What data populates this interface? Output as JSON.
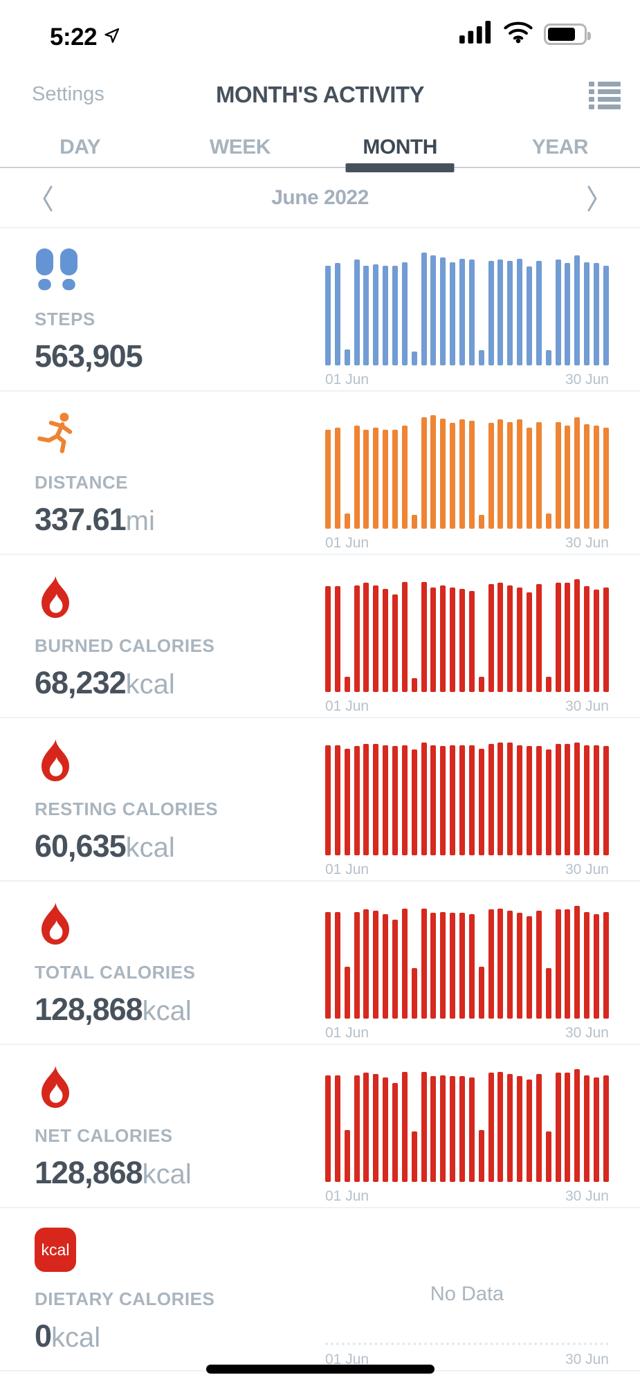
{
  "status_bar": {
    "time": "5:22"
  },
  "header": {
    "settings": "Settings",
    "title": "MONTH'S ACTIVITY"
  },
  "tabs": [
    {
      "label": "DAY"
    },
    {
      "label": "WEEK"
    },
    {
      "label": "MONTH"
    },
    {
      "label": "YEAR"
    }
  ],
  "active_tab": "MONTH",
  "date_nav": {
    "period": "June 2022"
  },
  "sections": [
    {
      "label": "STEPS",
      "value": "563,905",
      "unit": ""
    },
    {
      "label": "DISTANCE",
      "value": "337.61",
      "unit": "mi"
    },
    {
      "label": "BURNED CALORIES",
      "value": "68,232",
      "unit": "kcal"
    },
    {
      "label": "RESTING CALORIES",
      "value": "60,635",
      "unit": "kcal"
    },
    {
      "label": "TOTAL CALORIES",
      "value": "128,868",
      "unit": "kcal"
    },
    {
      "label": "NET CALORIES",
      "value": "128,868",
      "unit": "kcal"
    },
    {
      "label": "DIETARY CALORIES",
      "value": "0",
      "unit": "kcal",
      "badge_text": "kcal",
      "no_data": "No Data"
    }
  ],
  "chart_data": [
    {
      "type": "bar",
      "metric": "Steps",
      "color": "#719cd4",
      "x_labels": [
        "01 Jun",
        "30 Jun"
      ],
      "days": 30,
      "ylabel": "",
      "y_axis": "unlabeled, bar heights read as % of chart height",
      "monthly_total": "563,905 steps",
      "values_pct": [
        87,
        89,
        14,
        92,
        87,
        88,
        87,
        87,
        90,
        12,
        98,
        96,
        94,
        90,
        93,
        92,
        13,
        91,
        92,
        91,
        93,
        86,
        91,
        13,
        92,
        89,
        96,
        90,
        89,
        87
      ]
    },
    {
      "type": "bar",
      "metric": "Distance",
      "color": "#ee8434",
      "x_labels": [
        "01 Jun",
        "30 Jun"
      ],
      "days": 30,
      "ylabel": "",
      "y_axis": "unlabeled, bar heights read as % of chart height",
      "monthly_total": "337.61 mi",
      "values_pct": [
        86,
        88,
        13,
        90,
        86,
        88,
        86,
        86,
        90,
        12,
        97,
        99,
        96,
        92,
        95,
        94,
        12,
        92,
        95,
        93,
        95,
        88,
        93,
        13,
        93,
        90,
        97,
        91,
        90,
        88
      ]
    },
    {
      "type": "bar",
      "metric": "Burned Calories",
      "color": "#d6291f",
      "x_labels": [
        "01 Jun",
        "30 Jun"
      ],
      "days": 30,
      "ylabel": "",
      "y_axis": "unlabeled, bar heights read as % of chart height",
      "monthly_total": "68,232 kcal",
      "values_pct": [
        92,
        92,
        13,
        93,
        95,
        93,
        90,
        85,
        96,
        12,
        96,
        91,
        93,
        91,
        90,
        88,
        13,
        94,
        95,
        93,
        91,
        87,
        94,
        13,
        95,
        95,
        98,
        92,
        89,
        91
      ]
    },
    {
      "type": "bar",
      "metric": "Resting Calories",
      "color": "#d6291f",
      "x_labels": [
        "01 Jun",
        "30 Jun"
      ],
      "days": 30,
      "ylabel": "",
      "y_axis": "unlabeled, bar heights read as % of chart height",
      "monthly_total": "60,635 kcal",
      "values_pct": [
        96,
        96,
        93,
        95,
        97,
        97,
        96,
        95,
        96,
        92,
        98,
        96,
        95,
        96,
        96,
        96,
        93,
        97,
        98,
        98,
        96,
        95,
        95,
        92,
        97,
        97,
        98,
        96,
        96,
        95
      ]
    },
    {
      "type": "bar",
      "metric": "Total Calories",
      "color": "#d6291f",
      "x_labels": [
        "01 Jun",
        "30 Jun"
      ],
      "days": 30,
      "ylabel": "",
      "y_axis": "unlabeled, bar heights read as % of chart height",
      "monthly_total": "128,868 kcal",
      "values_pct": [
        93,
        93,
        45,
        93,
        95,
        94,
        91,
        86,
        96,
        44,
        96,
        92,
        93,
        92,
        92,
        91,
        45,
        95,
        96,
        94,
        92,
        89,
        94,
        44,
        95,
        95,
        98,
        93,
        91,
        93
      ]
    },
    {
      "type": "bar",
      "metric": "Net Calories",
      "color": "#d6291f",
      "x_labels": [
        "01 Jun",
        "30 Jun"
      ],
      "days": 30,
      "ylabel": "",
      "y_axis": "unlabeled, bar heights read as % of chart height",
      "monthly_total": "128,868 kcal",
      "values_pct": [
        93,
        93,
        45,
        93,
        95,
        94,
        91,
        86,
        96,
        44,
        96,
        92,
        93,
        92,
        92,
        91,
        45,
        95,
        96,
        94,
        92,
        89,
        94,
        44,
        95,
        95,
        98,
        93,
        91,
        93
      ]
    },
    {
      "type": "bar",
      "metric": "Dietary Calories",
      "color": "#d6291f",
      "x_labels": [
        "01 Jun",
        "30 Jun"
      ],
      "days": 30,
      "ylabel": "",
      "no_data": true,
      "no_data_label": "No Data",
      "monthly_total": "0 kcal",
      "values_pct": [
        0,
        0,
        0,
        0,
        0,
        0,
        0,
        0,
        0,
        0,
        0,
        0,
        0,
        0,
        0,
        0,
        0,
        0,
        0,
        0,
        0,
        0,
        0,
        0,
        0,
        0,
        0,
        0,
        0,
        0
      ]
    }
  ]
}
